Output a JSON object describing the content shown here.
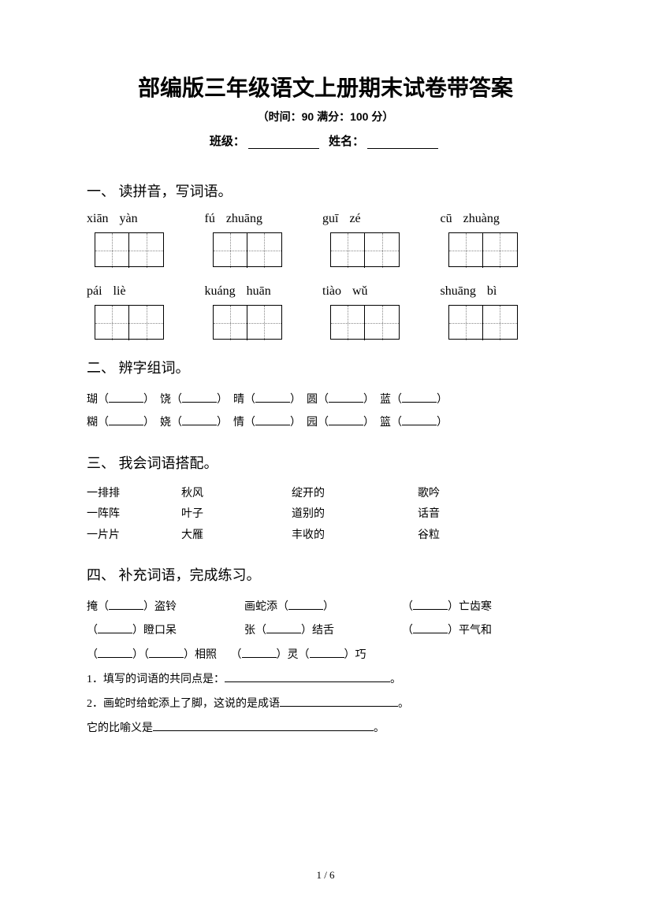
{
  "title": "部编版三年级语文上册期末试卷带答案",
  "subtitle": "（时间：90   满分：100 分）",
  "info": {
    "class_label": "班级：",
    "name_label": "姓名："
  },
  "s1": {
    "heading": "一、 读拼音，写词语。",
    "row1": [
      {
        "a": "xiān",
        "b": "yàn"
      },
      {
        "a": "fú",
        "b": "zhuāng"
      },
      {
        "a": "guī",
        "b": "zé"
      },
      {
        "a": "cū",
        "b": "zhuàng"
      }
    ],
    "row2": [
      {
        "a": "pái",
        "b": "liè"
      },
      {
        "a": "kuáng",
        "b": "huān"
      },
      {
        "a": "tiào",
        "b": "wǔ"
      },
      {
        "a": "shuāng",
        "b": "bì"
      }
    ]
  },
  "s2": {
    "heading": "二、 辨字组词。",
    "r1": [
      "瑚",
      "饶",
      "晴",
      "圆",
      "蓝"
    ],
    "r2": [
      "糊",
      "娆",
      "情",
      "园",
      "篮"
    ]
  },
  "s3": {
    "heading": "三、 我会词语搭配。",
    "rows": [
      [
        "一排排",
        "秋风",
        "绽开的",
        "歌吟"
      ],
      [
        "一阵阵",
        "叶子",
        "道别的",
        "话音"
      ],
      [
        "一片片",
        "大雁",
        "丰收的",
        "谷粒"
      ]
    ]
  },
  "s4": {
    "heading": "四、 补充词语，完成练习。",
    "l1a_pre": "掩（",
    "l1a_post": "）盗铃",
    "l1b_pre": "画蛇添（",
    "l1b_post": "）",
    "l1c_pre": "（",
    "l1c_post": "）亡齿寒",
    "l2a_pre": "（",
    "l2a_post": "）瞪口呆",
    "l2b_pre": "张（",
    "l2b_post": "）结舌",
    "l2c_pre": "（",
    "l2c_post": "）平气和",
    "l3a": "（",
    "l3b": "）（",
    "l3c": "）相照",
    "l3d": "（",
    "l3e": "）灵（",
    "l3f": "）巧",
    "q1": "1．填写的词语的共同点是：",
    "q2": "2．画蛇时给蛇添上了脚，这说的是成语",
    "q3": "它的比喻义是",
    "period": "。"
  },
  "footer": "1 / 6",
  "colors": {
    "bg": "#ffffff",
    "text": "#000000",
    "dotted": "#888888"
  }
}
